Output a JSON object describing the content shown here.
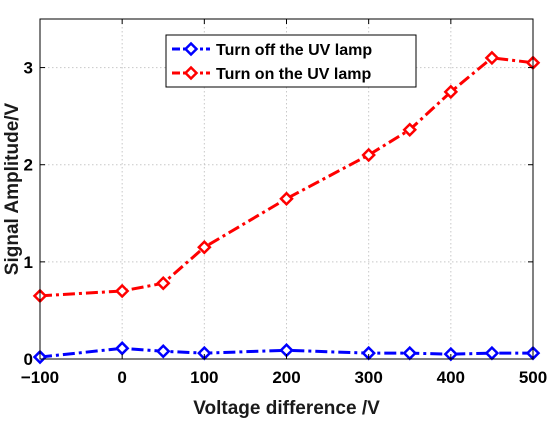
{
  "chart_data": {
    "type": "line",
    "title": "",
    "xlabel": "Voltage difference /V",
    "ylabel": "Signal Amplitude/V",
    "x": [
      -100,
      0,
      50,
      100,
      200,
      300,
      350,
      400,
      450,
      500
    ],
    "xlim": [
      -100,
      500
    ],
    "ylim": [
      0,
      3.5
    ],
    "xticks": [
      -100,
      0,
      100,
      200,
      300,
      400,
      500
    ],
    "xtick_labels": [
      "−100",
      "0",
      "100",
      "200",
      "300",
      "400",
      "500"
    ],
    "yticks": [
      0,
      1,
      2,
      3
    ],
    "ytick_labels": [
      "0",
      "1",
      "2",
      "3"
    ],
    "grid": true,
    "legend_position": "top-center",
    "series": [
      {
        "name": "Turn off the UV lamp",
        "color": "#0000ff",
        "marker": "diamond",
        "line_style": "dash-dot",
        "values": [
          0.02,
          0.11,
          0.08,
          0.06,
          0.09,
          0.06,
          0.06,
          0.05,
          0.06,
          0.06
        ]
      },
      {
        "name": "Turn on the UV lamp",
        "color": "#ff0000",
        "marker": "diamond",
        "line_style": "dash-dot",
        "values": [
          0.65,
          0.7,
          0.78,
          1.15,
          1.65,
          2.1,
          2.36,
          2.75,
          3.1,
          3.05
        ]
      }
    ]
  }
}
